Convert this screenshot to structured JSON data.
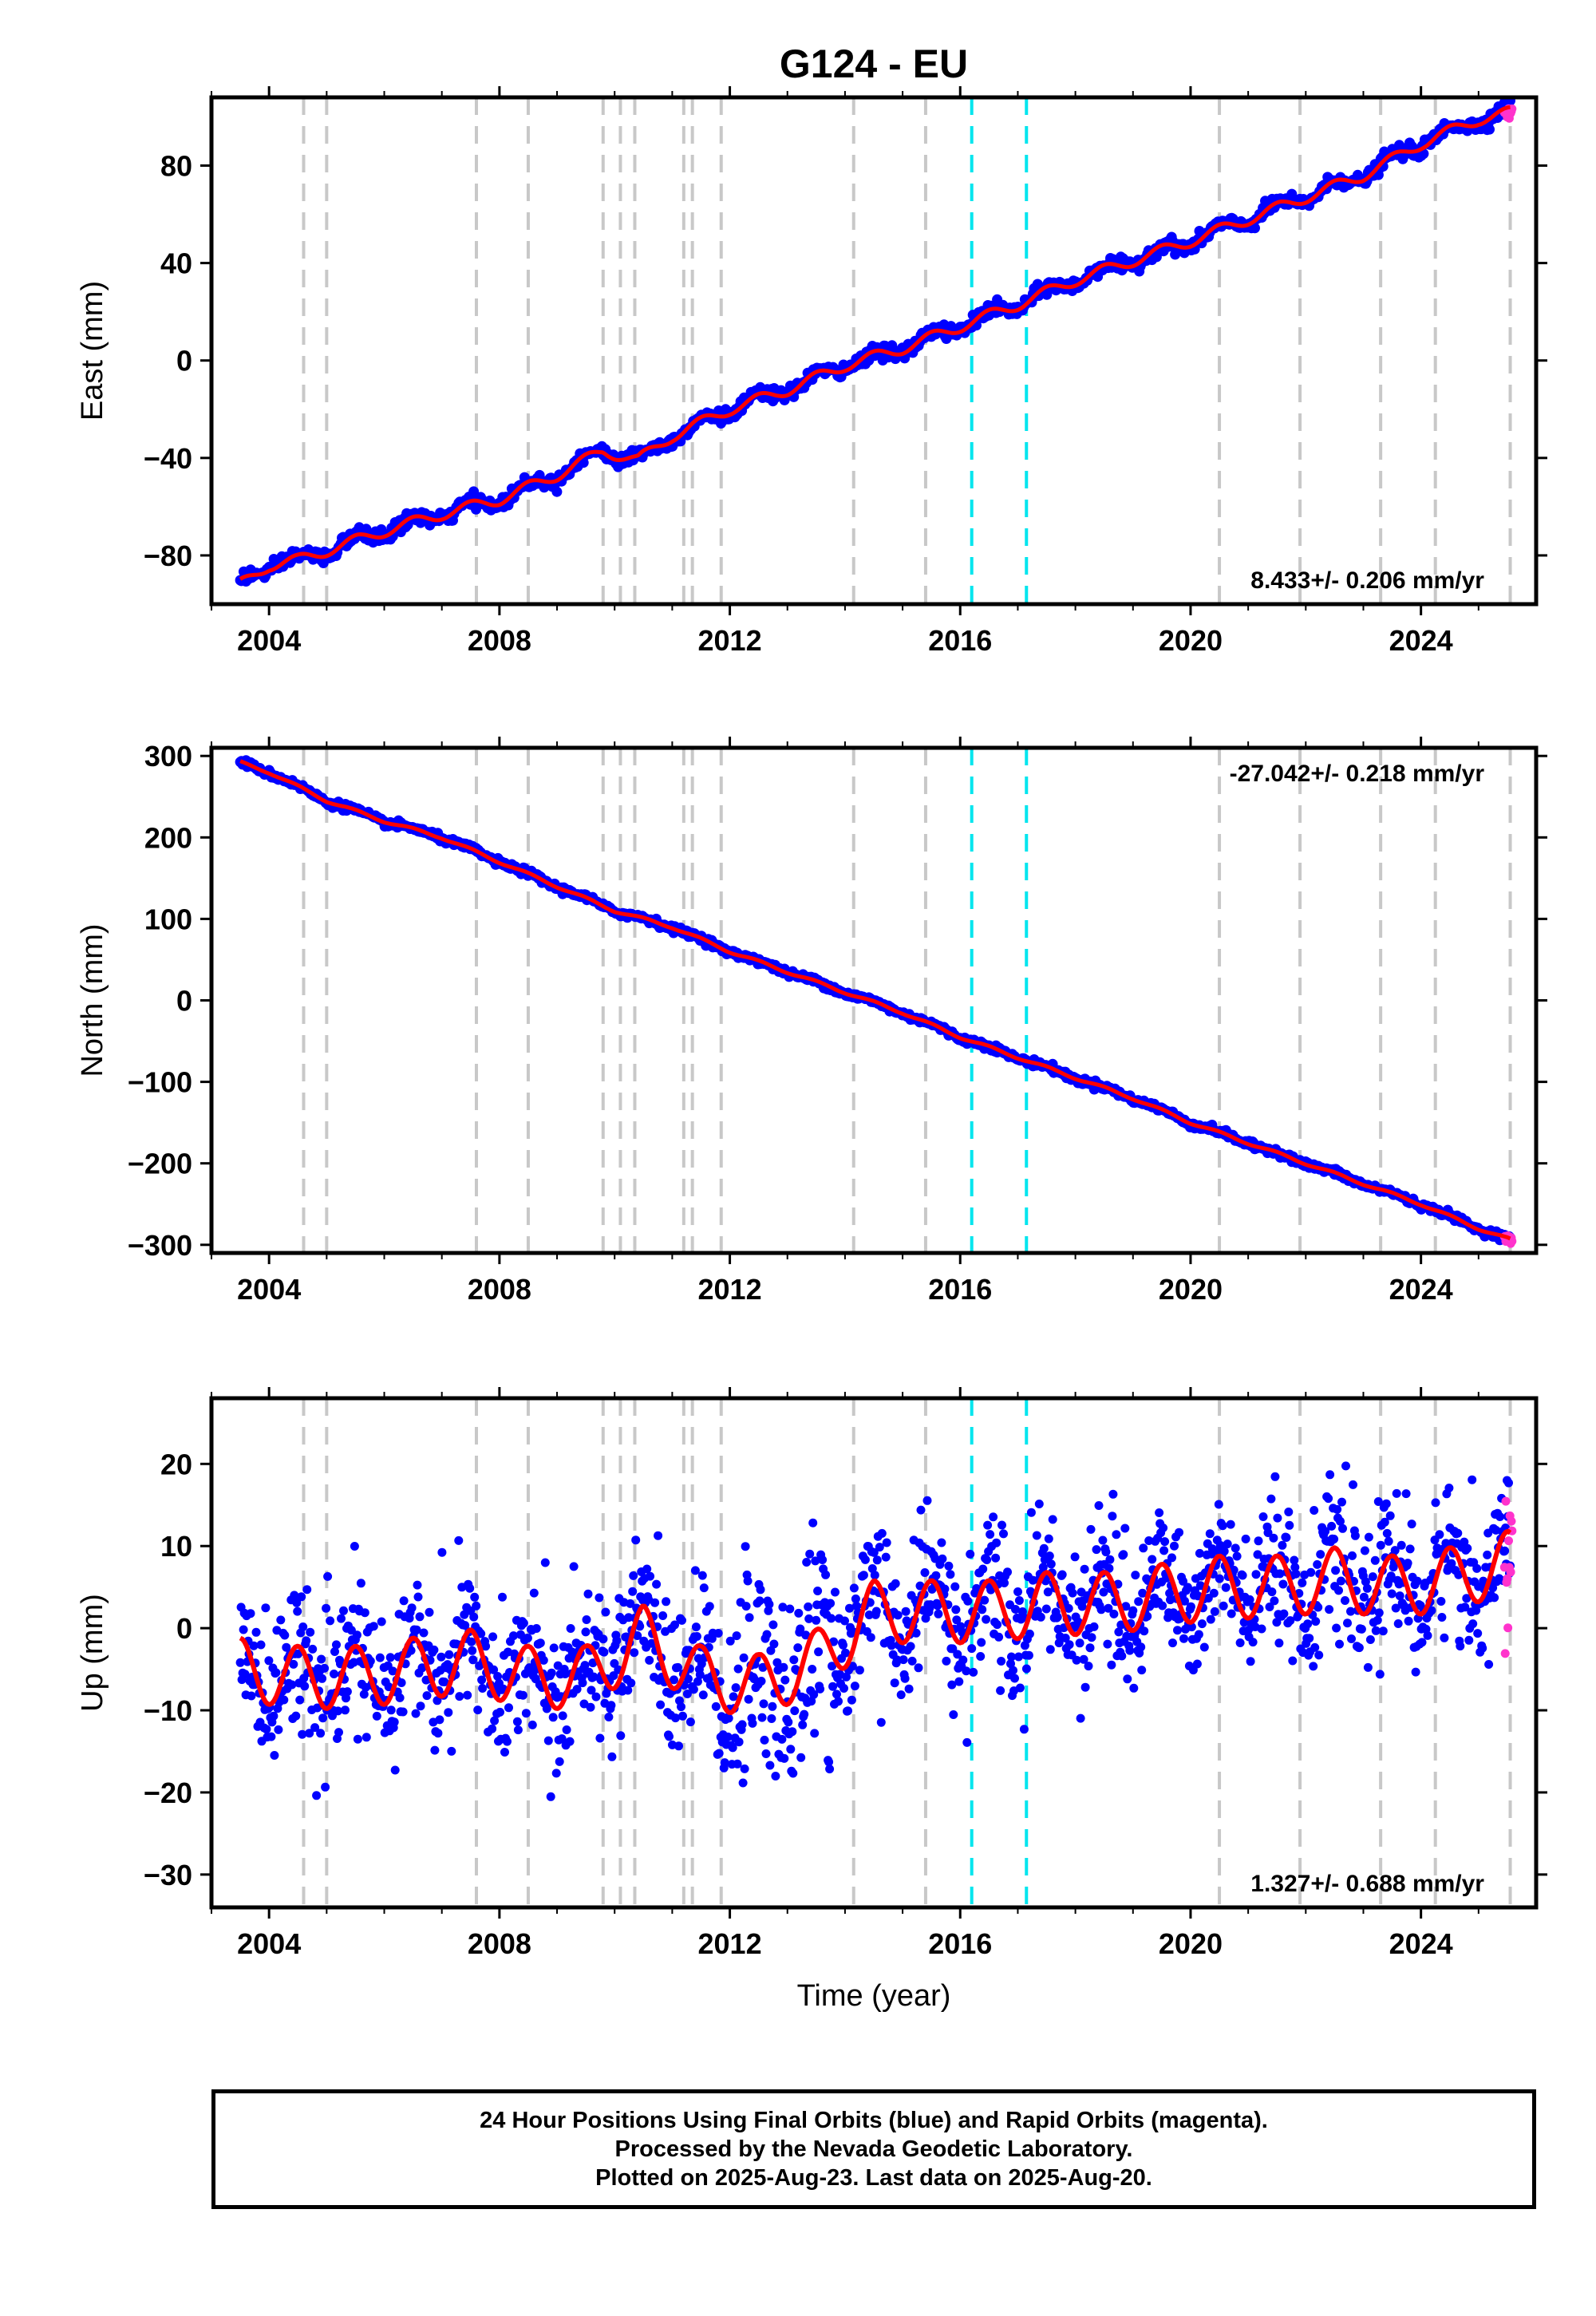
{
  "chart_data": {
    "title": "G124 - EU",
    "xlabel": "Time (year)",
    "xlim": [
      2003.0,
      2026.0
    ],
    "x_ticks": [
      "2004",
      "2008",
      "2012",
      "2016",
      "2020",
      "2024"
    ],
    "x_tick_values": [
      2004,
      2008,
      2012,
      2016,
      2020,
      2024
    ],
    "equipment_change_lines": {
      "color": "#c8c8c8",
      "style": "dashed",
      "x": [
        2004.6,
        2005.0,
        2007.6,
        2008.5,
        2009.8,
        2010.1,
        2010.35,
        2011.2,
        2011.35,
        2011.85,
        2014.15,
        2015.4,
        2020.5,
        2021.9,
        2023.3,
        2024.25,
        2025.55
      ]
    },
    "earthquake_lines": {
      "color": "#00e5ee",
      "style": "dashed",
      "x": [
        2016.2,
        2017.15
      ]
    },
    "series_colors": {
      "final_orbits": "#0000ff",
      "rapid_orbits": "#ff33cc",
      "model_fit": "#ff0000"
    },
    "panels": [
      {
        "type": "scatter",
        "component": "east",
        "ylabel": "East (mm)",
        "ylim": [
          -100,
          108
        ],
        "y_ticks": [
          "80",
          "40",
          "0",
          "−40",
          "−80"
        ],
        "y_tick_values": [
          80,
          40,
          0,
          -40,
          -80
        ],
        "rate_label": "8.433+/- 0.206 mm/yr",
        "rate_position": "bottom-right",
        "start_value": -92,
        "end_value": 101,
        "annual_amplitude": 2.3,
        "noise_sd": 1.4,
        "offset_steps": [],
        "points": [
          {
            "x": 2003.5,
            "y": -92
          },
          {
            "x": 2004.0,
            "y": -84
          },
          {
            "x": 2004.5,
            "y": -82
          },
          {
            "x": 2005.0,
            "y": -78
          },
          {
            "x": 2006.0,
            "y": -70
          },
          {
            "x": 2007.0,
            "y": -63
          },
          {
            "x": 2008.0,
            "y": -57
          },
          {
            "x": 2009.0,
            "y": -47
          },
          {
            "x": 2009.8,
            "y": -37
          },
          {
            "x": 2010.4,
            "y": -41
          },
          {
            "x": 2011.0,
            "y": -31
          },
          {
            "x": 2012.0,
            "y": -20
          },
          {
            "x": 2013.0,
            "y": -12
          },
          {
            "x": 2014.0,
            "y": -2
          },
          {
            "x": 2015.0,
            "y": 5
          },
          {
            "x": 2016.0,
            "y": 14
          },
          {
            "x": 2017.0,
            "y": 23
          },
          {
            "x": 2018.0,
            "y": 33
          },
          {
            "x": 2019.0,
            "y": 41
          },
          {
            "x": 2020.0,
            "y": 49
          },
          {
            "x": 2021.0,
            "y": 58
          },
          {
            "x": 2022.0,
            "y": 67
          },
          {
            "x": 2023.0,
            "y": 76
          },
          {
            "x": 2024.0,
            "y": 89
          },
          {
            "x": 2025.0,
            "y": 99
          },
          {
            "x": 2025.6,
            "y": 102
          }
        ]
      },
      {
        "type": "scatter",
        "component": "north",
        "ylabel": "North (mm)",
        "ylim": [
          -310,
          310
        ],
        "y_ticks": [
          "300",
          "200",
          "100",
          "0",
          "−100",
          "−200",
          "−300"
        ],
        "y_tick_values": [
          300,
          200,
          100,
          0,
          -100,
          -200,
          -300
        ],
        "rate_label": "-27.042+/- 0.218 mm/yr",
        "rate_position": "top-right",
        "start_value": 292,
        "end_value": -295,
        "annual_amplitude": 1.6,
        "noise_sd": 2.0,
        "offset_steps": [],
        "points": [
          {
            "x": 2003.5,
            "y": 292
          },
          {
            "x": 2004.0,
            "y": 280
          },
          {
            "x": 2005.0,
            "y": 245
          },
          {
            "x": 2006.0,
            "y": 220
          },
          {
            "x": 2007.0,
            "y": 200
          },
          {
            "x": 2008.0,
            "y": 170
          },
          {
            "x": 2009.0,
            "y": 140
          },
          {
            "x": 2010.0,
            "y": 110
          },
          {
            "x": 2011.0,
            "y": 90
          },
          {
            "x": 2012.0,
            "y": 60
          },
          {
            "x": 2013.0,
            "y": 35
          },
          {
            "x": 2014.0,
            "y": 10
          },
          {
            "x": 2015.0,
            "y": -15
          },
          {
            "x": 2016.0,
            "y": -45
          },
          {
            "x": 2017.0,
            "y": -70
          },
          {
            "x": 2018.0,
            "y": -95
          },
          {
            "x": 2019.0,
            "y": -120
          },
          {
            "x": 2020.0,
            "y": -150
          },
          {
            "x": 2021.0,
            "y": -175
          },
          {
            "x": 2022.0,
            "y": -200
          },
          {
            "x": 2023.0,
            "y": -225
          },
          {
            "x": 2024.0,
            "y": -250
          },
          {
            "x": 2025.0,
            "y": -280
          },
          {
            "x": 2025.6,
            "y": -295
          }
        ]
      },
      {
        "type": "scatter",
        "component": "up",
        "ylabel": "Up (mm)",
        "ylim": [
          -34,
          28
        ],
        "y_ticks": [
          "20",
          "10",
          "0",
          "−10",
          "−20",
          "−30"
        ],
        "y_tick_values": [
          20,
          10,
          0,
          -10,
          -20,
          -30
        ],
        "rate_label": "1.327+/- 0.688 mm/yr",
        "rate_position": "bottom-right",
        "start_value": -6,
        "end_value": 6,
        "annual_amplitude": 3.8,
        "noise_sd": 4.2,
        "offset_steps": [
          {
            "x": 2010.35,
            "dy": 5
          },
          {
            "x": 2010.8,
            "dy": -5
          },
          {
            "x": 2013.9,
            "dy": 9
          }
        ],
        "points": [
          {
            "x": 2003.5,
            "y": -5
          },
          {
            "x": 2004.5,
            "y": -6
          },
          {
            "x": 2005.5,
            "y": -6
          },
          {
            "x": 2006.5,
            "y": -5
          },
          {
            "x": 2007.5,
            "y": -4
          },
          {
            "x": 2008.5,
            "y": -6
          },
          {
            "x": 2009.5,
            "y": -6
          },
          {
            "x": 2010.5,
            "y": -1
          },
          {
            "x": 2011.5,
            "y": -6
          },
          {
            "x": 2012.5,
            "y": -7
          },
          {
            "x": 2013.5,
            "y": -4
          },
          {
            "x": 2014.5,
            "y": 2
          },
          {
            "x": 2015.5,
            "y": 2
          },
          {
            "x": 2016.5,
            "y": 2
          },
          {
            "x": 2017.5,
            "y": 3
          },
          {
            "x": 2018.5,
            "y": 3
          },
          {
            "x": 2019.5,
            "y": 4
          },
          {
            "x": 2020.5,
            "y": 5
          },
          {
            "x": 2021.5,
            "y": 5
          },
          {
            "x": 2022.5,
            "y": 6
          },
          {
            "x": 2023.5,
            "y": 5
          },
          {
            "x": 2024.5,
            "y": 6
          },
          {
            "x": 2025.5,
            "y": 8
          }
        ]
      }
    ]
  },
  "footer": {
    "line1": "24 Hour Positions Using Final Orbits (blue) and Rapid Orbits (magenta).",
    "line2": "Processed by the Nevada Geodetic Laboratory.",
    "line3": "Plotted on 2025-Aug-23. Last data on 2025-Aug-20."
  }
}
